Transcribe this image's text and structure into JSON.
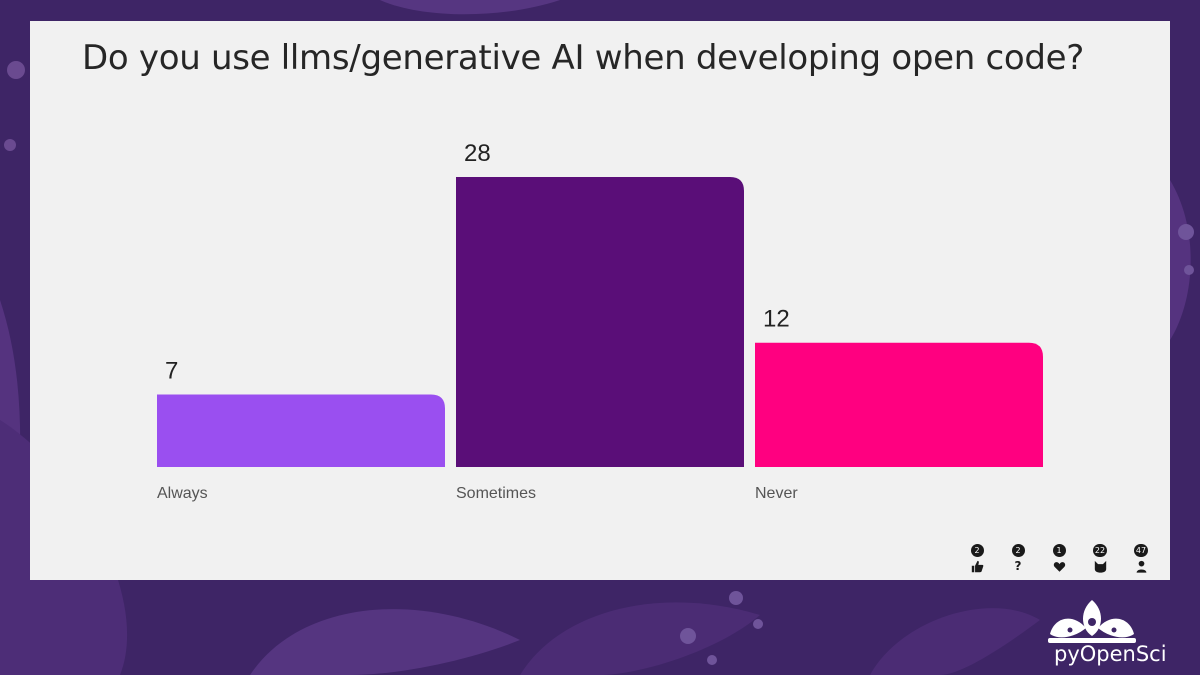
{
  "slide": {
    "title": "Do you use llms/generative AI when developing open code?"
  },
  "chart_data": {
    "type": "bar",
    "title": "Do you use llms/generative AI when developing open code?",
    "categories": [
      "Always",
      "Sometimes",
      "Never"
    ],
    "values": [
      7,
      28,
      12
    ],
    "colors": [
      "#9a4ff0",
      "#5a0e78",
      "#ff0080"
    ],
    "xlabel": "",
    "ylabel": "",
    "ylim": [
      0,
      28
    ],
    "grid": false,
    "legend": "none"
  },
  "reactions": [
    {
      "icon": "thumbs-up-icon",
      "count": "2"
    },
    {
      "icon": "question-icon",
      "count": "2"
    },
    {
      "icon": "heart-icon",
      "count": "1"
    },
    {
      "icon": "cat-icon",
      "count": "22"
    },
    {
      "icon": "person-icon",
      "count": "47"
    }
  ],
  "brand": {
    "name": "pyOpenSci"
  }
}
